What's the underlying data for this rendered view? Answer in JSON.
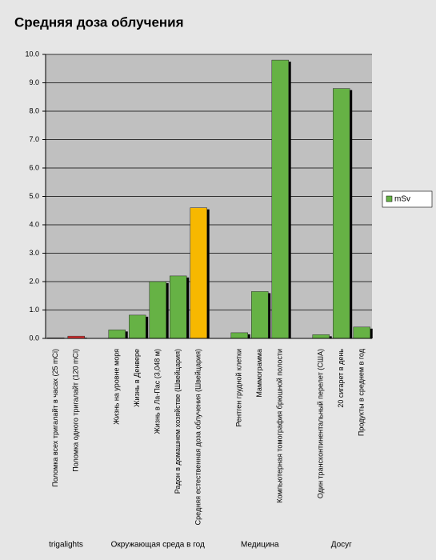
{
  "chart_data": {
    "type": "bar",
    "title": "Средняя доза облучения",
    "categories": [
      "Поломка всех тригалайт в часах (25 mCi)",
      "Поломка одного тригалайт (120 mCi)",
      "Жизнь на уровне моря",
      "Жизнь в Денвере",
      "Жизнь в Ла-Пас (3,048 м)",
      "Радон в домашнем хозяйстве (Швейцария)",
      "Средняя естественная доза облучения (Швейцария)",
      "Рентген грудной клетки",
      "Маммограмма",
      "Компьютерная томография брюшной полости",
      "Один трансконтинентальный перелет (США)",
      "20 сигарет в день",
      "Продукты в среднем в год"
    ],
    "groups": [
      {
        "label": "trigalights",
        "count": 2
      },
      {
        "label": "Окружающая среда в год",
        "count": 5
      },
      {
        "label": "Медицина",
        "count": 3
      },
      {
        "label": "Досуг",
        "count": 3
      }
    ],
    "series": [
      {
        "name": "mSv",
        "color": "#66b245",
        "values": [
          0.02,
          0.08,
          0.3,
          0.82,
          2.0,
          2.2,
          4.6,
          0.2,
          1.65,
          9.8,
          0.13,
          8.8,
          0.4
        ],
        "colors": [
          "#e03030",
          "#e03030",
          "#66b245",
          "#66b245",
          "#66b245",
          "#66b245",
          "#f7b800",
          "#66b245",
          "#66b245",
          "#66b245",
          "#66b245",
          "#66b245",
          "#66b245"
        ]
      }
    ],
    "ylim": [
      0,
      10
    ],
    "yticks": [
      {
        "value": 0,
        "label": "0.0"
      },
      {
        "value": 1,
        "label": "1.0"
      },
      {
        "value": 2,
        "label": "2.0"
      },
      {
        "value": 3,
        "label": "3.0"
      },
      {
        "value": 4,
        "label": "4.0"
      },
      {
        "value": 5,
        "label": "5.0"
      },
      {
        "value": 6,
        "label": "6.0"
      },
      {
        "value": 7,
        "label": "7.0"
      },
      {
        "value": 8,
        "label": "8.0"
      },
      {
        "value": 9,
        "label": "9.0"
      },
      {
        "value": 10,
        "label": "10.0"
      }
    ],
    "grid": true,
    "legend": "right"
  }
}
